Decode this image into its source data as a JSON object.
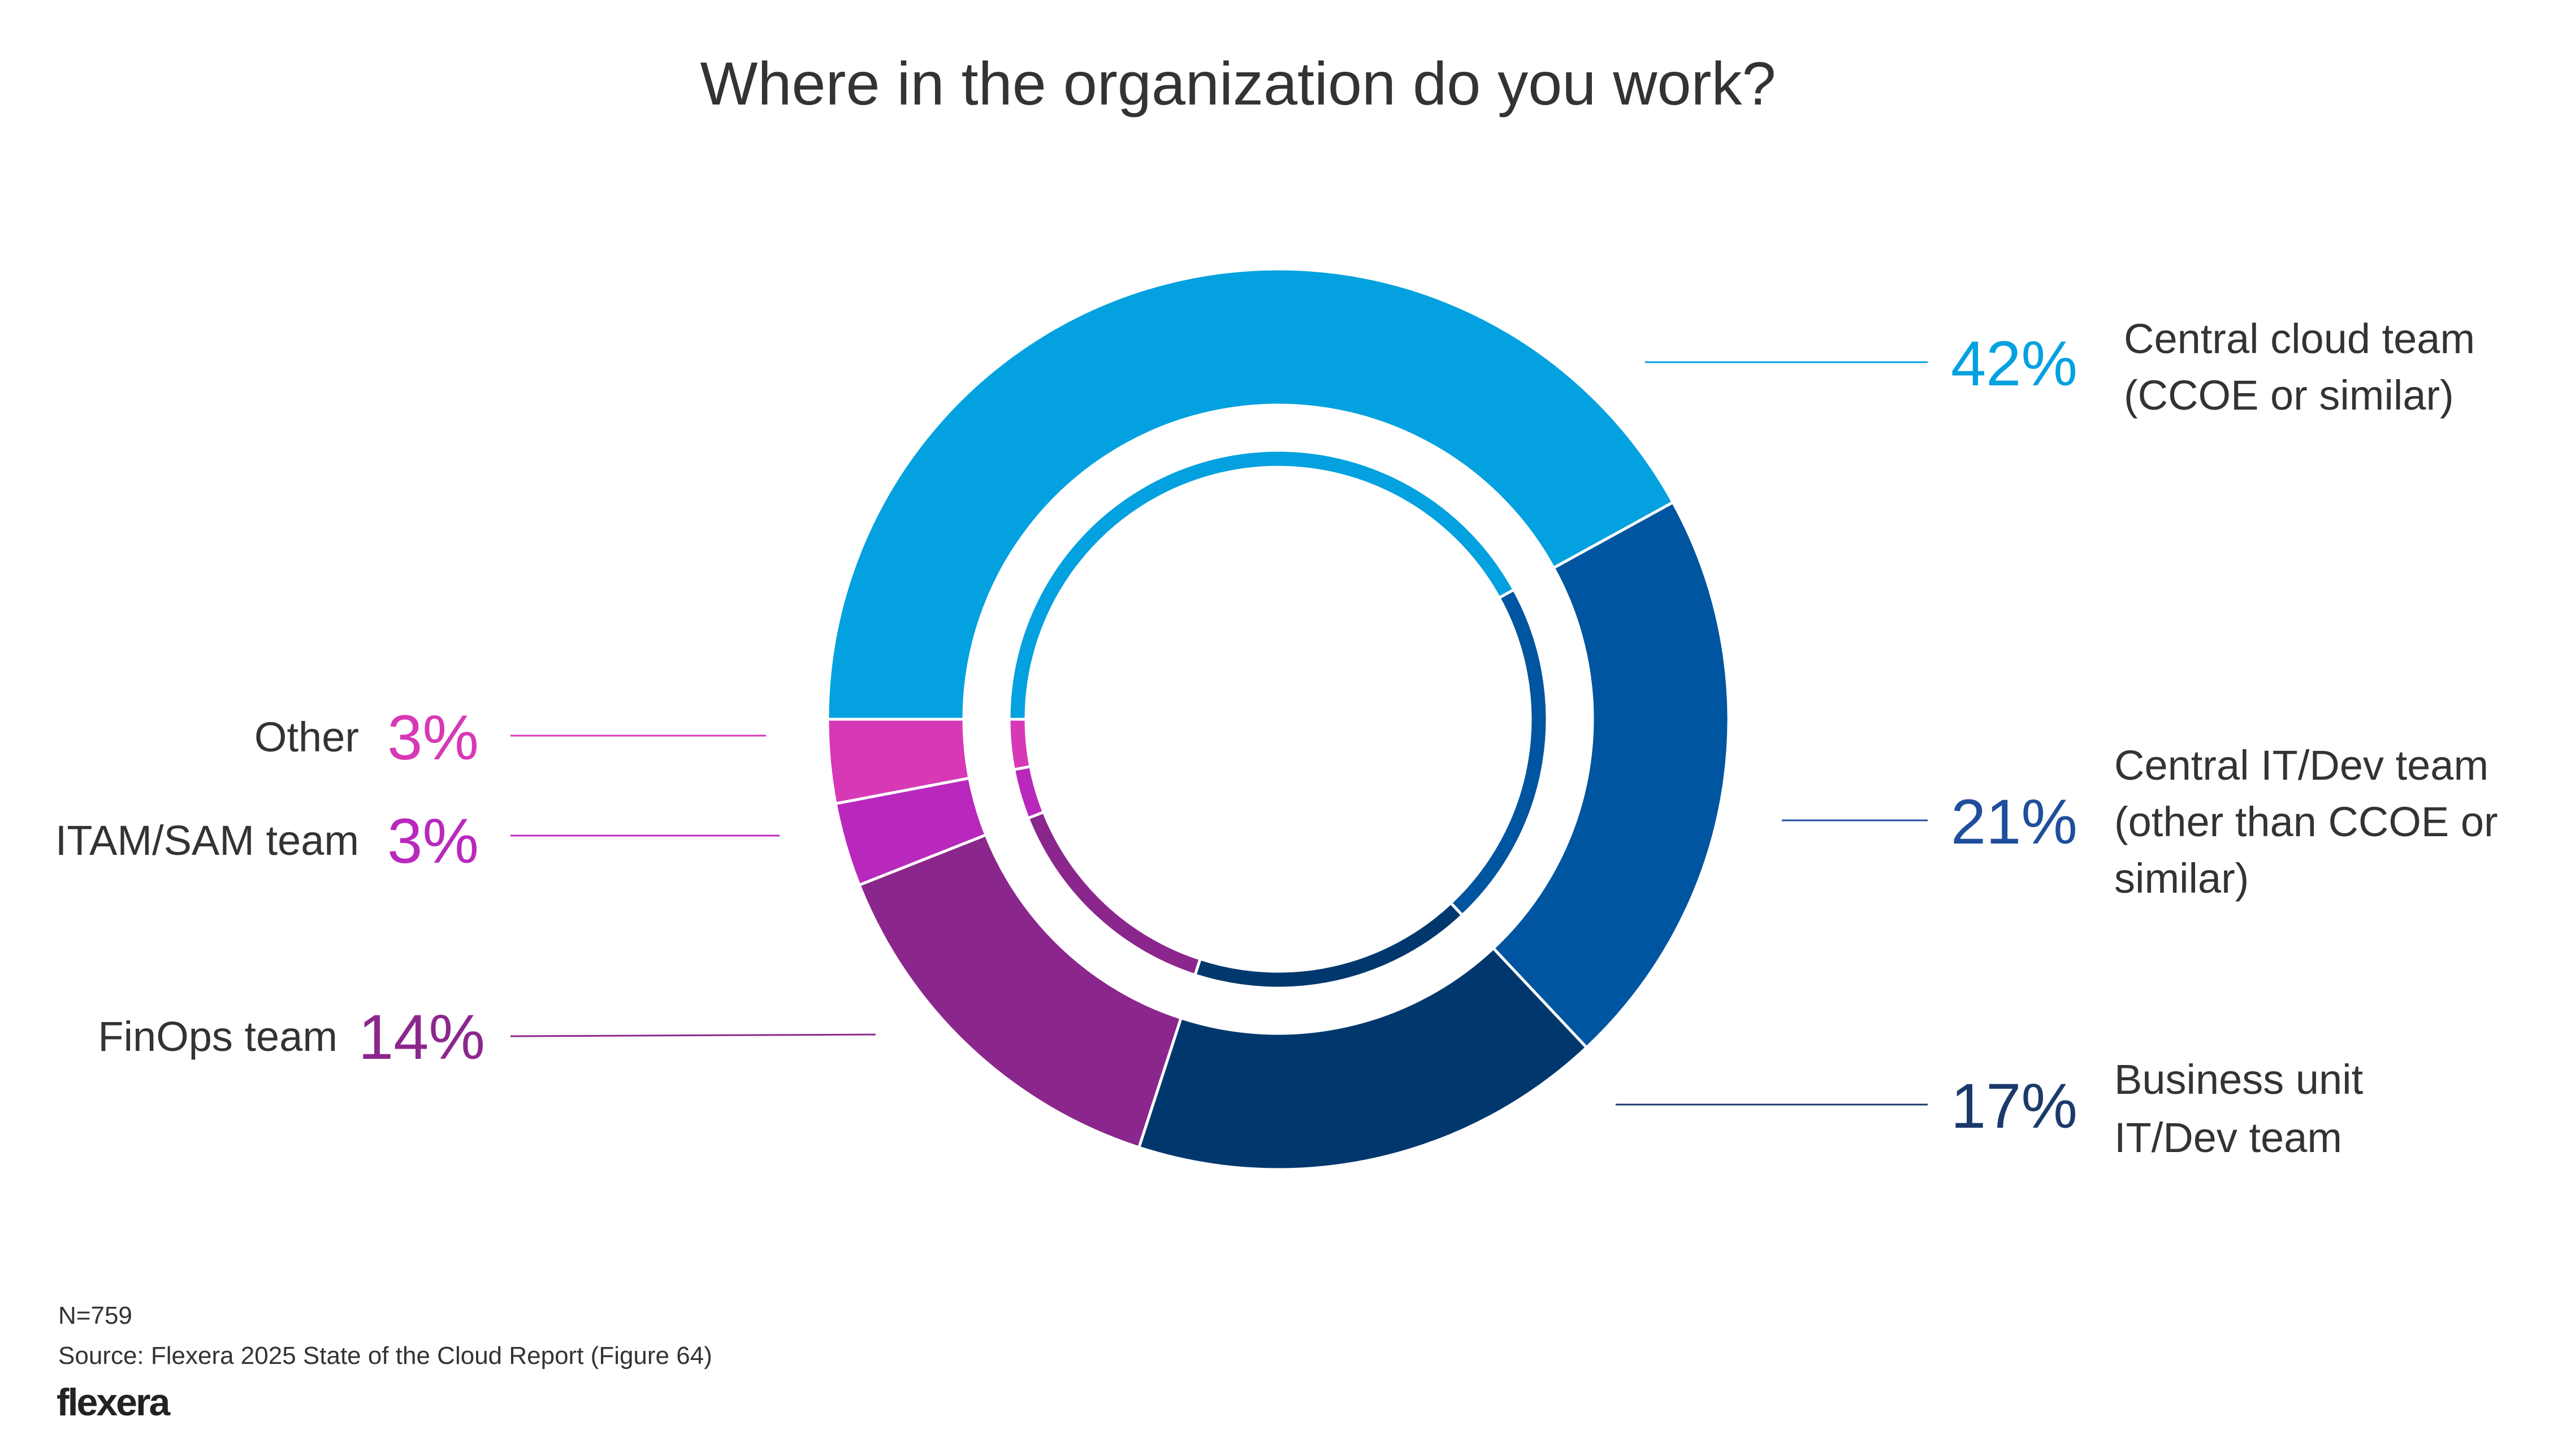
{
  "chart_data": {
    "type": "pie",
    "style": "donut",
    "title": "Where in the organization do you work?",
    "categories": [
      "Central cloud team (CCOE or similar)",
      "Central IT/Dev team (other than CCOE or similar)",
      "Business unit IT/Dev team",
      "FinOps team",
      "ITAM/SAM team",
      "Other"
    ],
    "values": [
      42,
      21,
      17,
      14,
      3,
      3
    ],
    "unit": "%",
    "colors": [
      "#03A1DF",
      "#0055A0",
      "#00386D",
      "#8B278C",
      "#B928BD",
      "#D638B6"
    ],
    "labels": [
      {
        "pct": "42%",
        "lines": [
          "Central cloud team",
          "(CCOE or similar)"
        ],
        "color": "#03A1DF"
      },
      {
        "pct": "21%",
        "lines": [
          "Central IT/Dev team",
          "(other than CCOE or",
          "similar)"
        ],
        "color": "#1F4E9C"
      },
      {
        "pct": "17%",
        "lines": [
          "Business unit",
          "IT/Dev team"
        ],
        "color": "#1B3A6B"
      },
      {
        "pct": "14%",
        "lines": [
          "FinOps team"
        ],
        "color": "#8B278C"
      },
      {
        "pct": "3%",
        "lines": [
          "ITAM/SAM team"
        ],
        "color": "#B928BD"
      },
      {
        "pct": "3%",
        "lines": [
          "Other"
        ],
        "color": "#D638B6"
      }
    ]
  },
  "footer": {
    "n": "N=759",
    "source": "Source: Flexera 2025 State of the Cloud Report (Figure 64)",
    "logo": "flexera"
  }
}
